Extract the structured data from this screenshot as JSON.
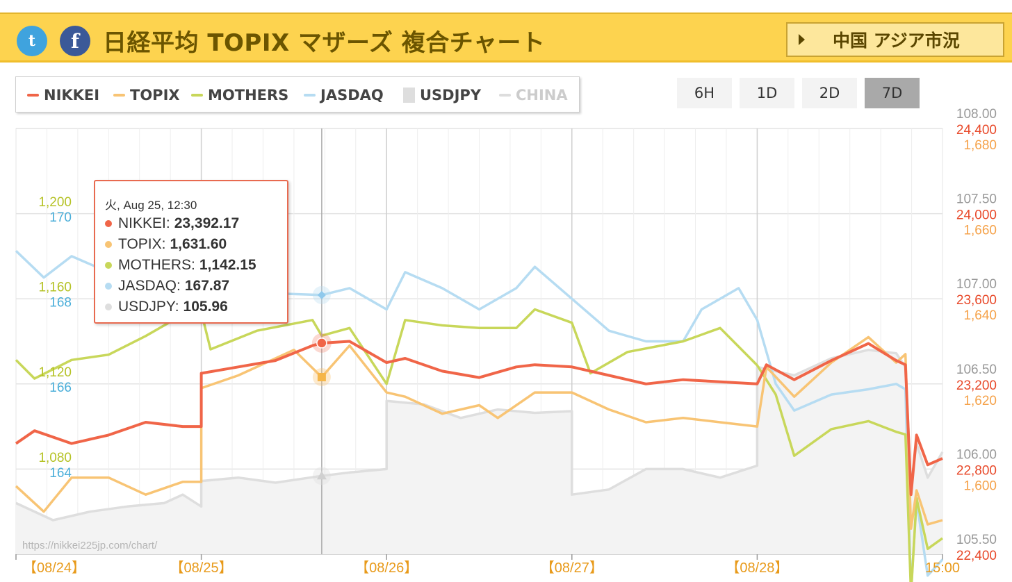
{
  "header": {
    "title": "日経平均 TOPIX マザーズ 複合チャート",
    "twitter_glyph": "t",
    "facebook_glyph": "f",
    "button_label": "中国 アジア市況",
    "bg_color": "#fdd34f"
  },
  "range_buttons": [
    "6H",
    "1D",
    "2D",
    "7D"
  ],
  "range_selected": "7D",
  "legend": [
    {
      "name": "NIKKEI",
      "color": "#f06548",
      "visible": true
    },
    {
      "name": "TOPIX",
      "color": "#f8c474",
      "visible": true
    },
    {
      "name": "MOTHERS",
      "color": "#c8d75a",
      "visible": true
    },
    {
      "name": "JASDAQ",
      "color": "#b6dcf2",
      "visible": true
    },
    {
      "name": "USDJPY",
      "color": "#dedede",
      "visible": true
    },
    {
      "name": "CHINA",
      "color": "#dddddd",
      "visible": false
    }
  ],
  "tooltip": {
    "header": "火, Aug 25, 12:30",
    "rows": [
      {
        "label": "NIKKEI:",
        "value": "23,392.17",
        "color": "#f06548"
      },
      {
        "label": "TOPIX:",
        "value": "1,631.60",
        "color": "#f8c474"
      },
      {
        "label": "MOTHERS:",
        "value": "1,142.15",
        "color": "#c8d75a"
      },
      {
        "label": "JASDAQ:",
        "value": "167.87",
        "color": "#b6dcf2"
      },
      {
        "label": "USDJPY:",
        "value": "105.96",
        "color": "#dedede"
      }
    ]
  },
  "watermark": "https://nikkei225jp.com/chart/",
  "chart_data": {
    "type": "line",
    "x_labels": [
      "【08/24】",
      "【08/25】",
      "【08/26】",
      "【08/27】",
      "【08/28】",
      "15:00"
    ],
    "axes": {
      "usdjpy": {
        "ticks": [
          "108.00",
          "107.50",
          "107.00",
          "106.50",
          "106.00",
          "105.50"
        ],
        "range": [
          105.5,
          108.0
        ],
        "color": "#999999"
      },
      "nikkei": {
        "ticks": [
          "24,400",
          "24,000",
          "23,600",
          "23,200",
          "22,800",
          "22,400"
        ],
        "range": [
          22400,
          24400
        ],
        "color": "#e8492a"
      },
      "topix": {
        "ticks": [
          "1,680",
          "1,660",
          "1,640",
          "1,620",
          "1,600"
        ],
        "range": [
          1590,
          1690
        ],
        "color": "#f5a24a"
      },
      "mothers": {
        "ticks": [
          "1,200",
          "1,160",
          "1,120",
          "1,080"
        ],
        "range": [
          1060,
          1220
        ],
        "color": "#b5c226"
      },
      "jasdaq": {
        "ticks": [
          "170",
          "168",
          "166",
          "164"
        ],
        "range": [
          163,
          171
        ],
        "color": "#4aaed9"
      }
    },
    "series": [
      {
        "name": "NIKKEI",
        "color": "#f06548",
        "values": [
          [
            0,
            22920
          ],
          [
            0.1,
            22980
          ],
          [
            0.3,
            22920
          ],
          [
            0.5,
            22960
          ],
          [
            0.7,
            23020
          ],
          [
            0.9,
            23000
          ],
          [
            1.0,
            23000
          ],
          [
            1.0,
            23250
          ],
          [
            1.2,
            23280
          ],
          [
            1.4,
            23310
          ],
          [
            1.6,
            23380
          ],
          [
            1.65,
            23392
          ],
          [
            1.8,
            23400
          ],
          [
            2.0,
            23300
          ],
          [
            2.1,
            23320
          ],
          [
            2.3,
            23260
          ],
          [
            2.5,
            23230
          ],
          [
            2.7,
            23280
          ],
          [
            2.8,
            23290
          ],
          [
            3.0,
            23280
          ],
          [
            3.2,
            23240
          ],
          [
            3.4,
            23200
          ],
          [
            3.6,
            23220
          ],
          [
            3.8,
            23210
          ],
          [
            4.0,
            23200
          ],
          [
            4.05,
            23290
          ],
          [
            4.2,
            23220
          ],
          [
            4.4,
            23310
          ],
          [
            4.6,
            23390
          ],
          [
            4.75,
            23310
          ],
          [
            4.8,
            23290
          ],
          [
            4.83,
            22680
          ],
          [
            4.86,
            22960
          ],
          [
            4.92,
            22820
          ],
          [
            5.0,
            22850
          ]
        ]
      },
      {
        "name": "TOPIX",
        "color": "#f8c474",
        "values": [
          [
            0,
            1606
          ],
          [
            0.15,
            1600
          ],
          [
            0.3,
            1608
          ],
          [
            0.5,
            1608
          ],
          [
            0.7,
            1604
          ],
          [
            0.9,
            1607
          ],
          [
            1.0,
            1607
          ],
          [
            1.0,
            1629
          ],
          [
            1.2,
            1632
          ],
          [
            1.5,
            1638
          ],
          [
            1.65,
            1631.6
          ],
          [
            1.8,
            1639
          ],
          [
            2.0,
            1628
          ],
          [
            2.1,
            1627
          ],
          [
            2.3,
            1623
          ],
          [
            2.5,
            1625
          ],
          [
            2.6,
            1622
          ],
          [
            2.8,
            1628
          ],
          [
            3.0,
            1628
          ],
          [
            3.2,
            1624
          ],
          [
            3.4,
            1621
          ],
          [
            3.6,
            1622
          ],
          [
            3.8,
            1621
          ],
          [
            4.0,
            1620
          ],
          [
            4.05,
            1634
          ],
          [
            4.2,
            1627
          ],
          [
            4.4,
            1635
          ],
          [
            4.6,
            1641
          ],
          [
            4.75,
            1635
          ],
          [
            4.8,
            1637
          ],
          [
            4.83,
            1596
          ],
          [
            4.86,
            1605
          ],
          [
            4.92,
            1597
          ],
          [
            5.0,
            1598
          ]
        ]
      },
      {
        "name": "MOTHERS",
        "color": "#c8d75a",
        "values": [
          [
            0,
            1133
          ],
          [
            0.1,
            1126
          ],
          [
            0.3,
            1133
          ],
          [
            0.5,
            1135
          ],
          [
            0.7,
            1142
          ],
          [
            0.9,
            1150
          ],
          [
            1.0,
            1151
          ],
          [
            1.05,
            1137
          ],
          [
            1.3,
            1144
          ],
          [
            1.6,
            1148
          ],
          [
            1.65,
            1142.15
          ],
          [
            1.8,
            1145
          ],
          [
            2.0,
            1124
          ],
          [
            2.1,
            1148
          ],
          [
            2.3,
            1146
          ],
          [
            2.5,
            1145
          ],
          [
            2.7,
            1145
          ],
          [
            2.8,
            1152
          ],
          [
            3.0,
            1147
          ],
          [
            3.1,
            1128
          ],
          [
            3.3,
            1136
          ],
          [
            3.6,
            1140
          ],
          [
            3.8,
            1145
          ],
          [
            4.0,
            1131
          ],
          [
            4.1,
            1120
          ],
          [
            4.2,
            1097
          ],
          [
            4.4,
            1107
          ],
          [
            4.6,
            1110
          ],
          [
            4.75,
            1106
          ],
          [
            4.8,
            1105
          ],
          [
            4.83,
            1045
          ],
          [
            4.86,
            1081
          ],
          [
            4.92,
            1062
          ],
          [
            5.0,
            1066
          ]
        ]
      },
      {
        "name": "JASDAQ",
        "color": "#b6dcf2",
        "values": [
          [
            0,
            168.7
          ],
          [
            0.15,
            168.2
          ],
          [
            0.3,
            168.6
          ],
          [
            0.5,
            168.3
          ],
          [
            0.7,
            168.4
          ],
          [
            0.9,
            168.8
          ],
          [
            1.0,
            168.8
          ],
          [
            1.2,
            168.2
          ],
          [
            1.4,
            167.9
          ],
          [
            1.65,
            167.87
          ],
          [
            1.8,
            168.0
          ],
          [
            2.0,
            167.6
          ],
          [
            2.1,
            168.3
          ],
          [
            2.3,
            168.0
          ],
          [
            2.5,
            167.6
          ],
          [
            2.7,
            168.0
          ],
          [
            2.8,
            168.4
          ],
          [
            3.0,
            167.8
          ],
          [
            3.2,
            167.2
          ],
          [
            3.4,
            167.0
          ],
          [
            3.6,
            167.0
          ],
          [
            3.7,
            167.6
          ],
          [
            3.9,
            168.0
          ],
          [
            4.0,
            167.4
          ],
          [
            4.1,
            166.2
          ],
          [
            4.2,
            165.7
          ],
          [
            4.4,
            166.0
          ],
          [
            4.6,
            166.1
          ],
          [
            4.75,
            166.2
          ],
          [
            4.8,
            166.1
          ],
          [
            4.83,
            162.3
          ],
          [
            4.86,
            164.0
          ],
          [
            4.92,
            162.6
          ],
          [
            5.0,
            162.9
          ]
        ]
      },
      {
        "name": "USDJPY",
        "color": "#dedede",
        "values": [
          [
            0,
            105.8
          ],
          [
            0.2,
            105.7
          ],
          [
            0.4,
            105.75
          ],
          [
            0.6,
            105.78
          ],
          [
            0.8,
            105.8
          ],
          [
            0.9,
            105.85
          ],
          [
            1.0,
            105.78
          ],
          [
            1.0,
            105.93
          ],
          [
            1.2,
            105.95
          ],
          [
            1.4,
            105.92
          ],
          [
            1.65,
            105.96
          ],
          [
            1.8,
            105.98
          ],
          [
            2.0,
            106.0
          ],
          [
            2.0,
            106.4
          ],
          [
            2.2,
            106.38
          ],
          [
            2.4,
            106.3
          ],
          [
            2.6,
            106.35
          ],
          [
            2.8,
            106.33
          ],
          [
            3.0,
            106.34
          ],
          [
            3.0,
            105.85
          ],
          [
            3.2,
            105.88
          ],
          [
            3.4,
            106.0
          ],
          [
            3.6,
            106.0
          ],
          [
            3.8,
            105.95
          ],
          [
            4.0,
            106.02
          ],
          [
            4.0,
            106.6
          ],
          [
            4.2,
            106.55
          ],
          [
            4.4,
            106.65
          ],
          [
            4.6,
            106.7
          ],
          [
            4.75,
            106.68
          ],
          [
            4.8,
            106.6
          ],
          [
            4.83,
            105.9
          ],
          [
            4.86,
            106.15
          ],
          [
            4.92,
            105.95
          ],
          [
            5.0,
            106.1
          ]
        ]
      }
    ]
  }
}
